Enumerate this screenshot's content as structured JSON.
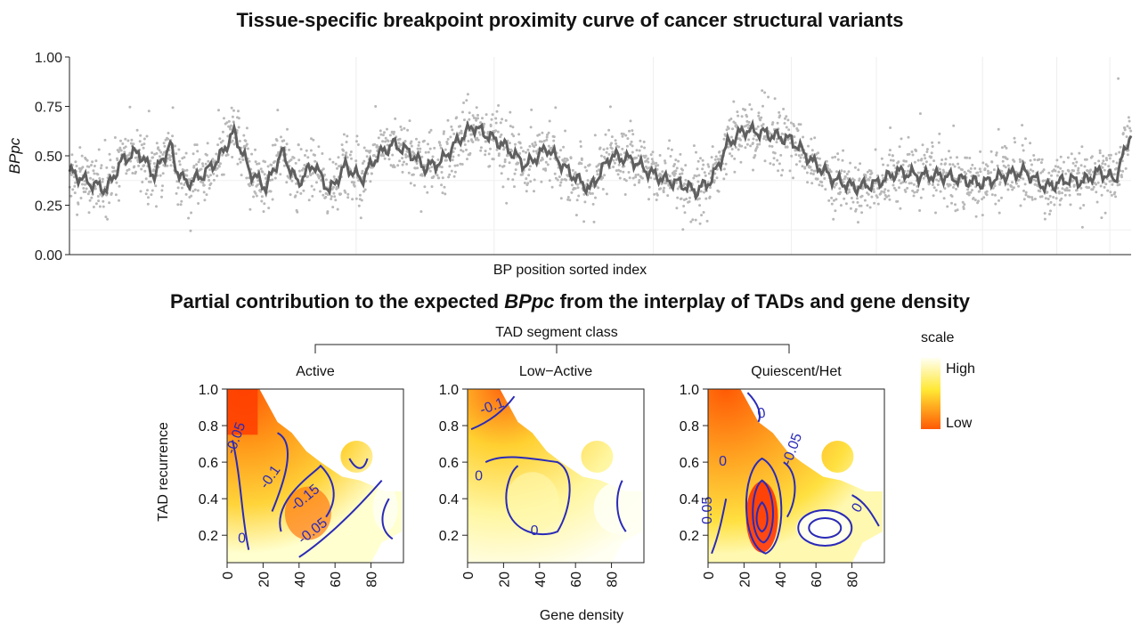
{
  "title_top": "Tissue-specific breakpoint proximity curve of cancer structural variants",
  "title_bottom": {
    "prefix": "Partial contribution to the expected ",
    "italic": "BPpc",
    "suffix": " from the interplay of TADs and gene density"
  },
  "chart_data": [
    {
      "type": "scatter",
      "title": "Tissue-specific breakpoint proximity curve of cancer structural variants",
      "xlabel": "BP position sorted index",
      "ylabel": "BPpc",
      "ylim": [
        0,
        1
      ],
      "yticks": [
        "0.00",
        "0.25",
        "0.50",
        "0.75",
        "1.00"
      ],
      "colors": {
        "points": "#b8b8b8",
        "smooth": "#5f5f5f"
      },
      "smooth_curve": {
        "x": [
          0,
          0.02,
          0.035,
          0.05,
          0.065,
          0.08,
          0.095,
          0.1,
          0.11,
          0.125,
          0.14,
          0.155,
          0.17,
          0.185,
          0.2,
          0.215,
          0.23,
          0.245,
          0.26,
          0.275,
          0.29,
          0.305,
          0.32,
          0.335,
          0.35,
          0.365,
          0.38,
          0.395,
          0.41,
          0.43,
          0.45,
          0.47,
          0.49,
          0.51,
          0.53,
          0.545,
          0.56,
          0.575,
          0.59,
          0.605,
          0.62,
          0.635,
          0.65,
          0.665,
          0.68,
          0.7,
          0.72,
          0.74,
          0.76,
          0.78,
          0.8,
          0.82,
          0.84,
          0.86,
          0.88,
          0.9,
          0.92,
          0.94,
          0.955,
          0.97,
          0.985,
          1.0
        ],
        "y": [
          0.42,
          0.36,
          0.33,
          0.48,
          0.52,
          0.4,
          0.56,
          0.44,
          0.36,
          0.4,
          0.48,
          0.62,
          0.42,
          0.34,
          0.52,
          0.36,
          0.46,
          0.32,
          0.45,
          0.38,
          0.5,
          0.56,
          0.52,
          0.44,
          0.47,
          0.57,
          0.65,
          0.6,
          0.55,
          0.45,
          0.54,
          0.42,
          0.33,
          0.5,
          0.48,
          0.42,
          0.38,
          0.36,
          0.32,
          0.38,
          0.56,
          0.63,
          0.62,
          0.6,
          0.58,
          0.47,
          0.38,
          0.34,
          0.36,
          0.42,
          0.4,
          0.4,
          0.38,
          0.36,
          0.4,
          0.42,
          0.34,
          0.38,
          0.37,
          0.42,
          0.38,
          0.62
        ]
      }
    },
    {
      "type": "heatmap",
      "title": "Partial contribution to the expected BPpc from the interplay of TADs and gene density",
      "xlabel": "Gene density",
      "ylabel": "TAD recurrence",
      "facet_label": "TAD segment class",
      "panels": [
        {
          "name": "Active",
          "contours": [
            "-0.05",
            "-0.1",
            "-0.15",
            "-0.05",
            "0"
          ]
        },
        {
          "name": "Low−Active",
          "contours": [
            "-0.1",
            "0",
            "0"
          ]
        },
        {
          "name": "Quiescent/Het",
          "contours": [
            "0",
            "-0.05",
            "0.05",
            "0",
            "0"
          ]
        }
      ],
      "xticks": [
        "0",
        "20",
        "40",
        "60",
        "80"
      ],
      "yticks": [
        "0.2",
        "0.4",
        "0.6",
        "0.8",
        "1.0"
      ],
      "legend": {
        "title": "scale",
        "high": "High",
        "low": "Low",
        "position": "right"
      },
      "colors": {
        "high": "#fffff2",
        "mid": "#ffe834",
        "low": "#ff5a05",
        "contour": "#2a2ab8"
      }
    }
  ]
}
